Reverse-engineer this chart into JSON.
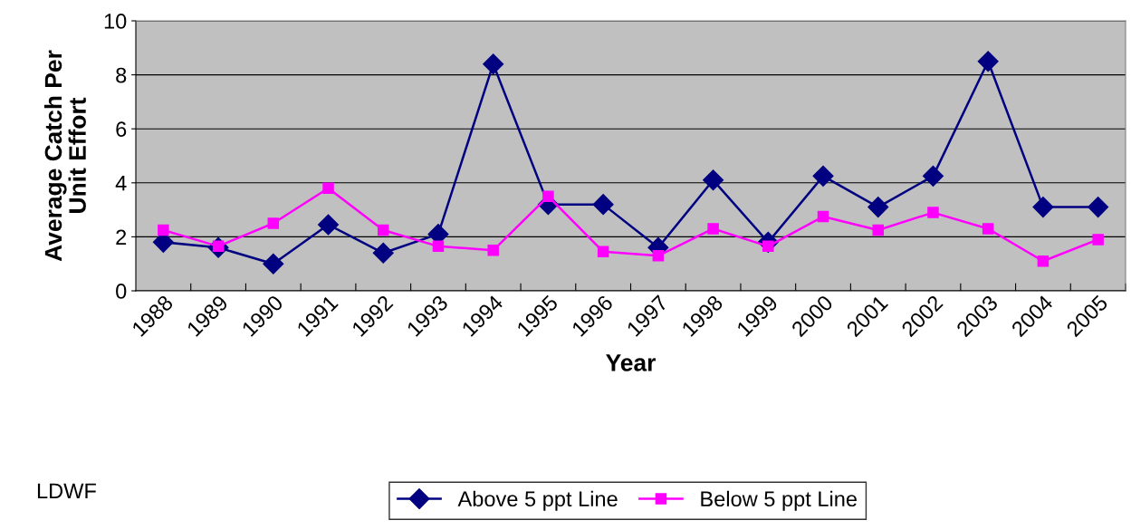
{
  "chart_data": {
    "type": "line",
    "xlabel": "Year",
    "ylabel": "Average Catch Per\nUnit Effort",
    "categories": [
      "1988",
      "1989",
      "1990",
      "1991",
      "1992",
      "1993",
      "1994",
      "1995",
      "1996",
      "1997",
      "1998",
      "1999",
      "2000",
      "2001",
      "2002",
      "2003",
      "2004",
      "2005"
    ],
    "series": [
      {
        "name": "Above 5 ppt Line",
        "color": "#000080",
        "marker": "diamond",
        "values": [
          1.8,
          1.6,
          1.0,
          2.45,
          1.4,
          2.1,
          8.4,
          3.2,
          3.2,
          1.6,
          4.1,
          1.8,
          4.25,
          3.1,
          4.25,
          8.5,
          3.1,
          3.1
        ]
      },
      {
        "name": "Below 5 ppt Line",
        "color": "#ff00ff",
        "marker": "square",
        "values": [
          2.25,
          1.65,
          2.5,
          3.8,
          2.25,
          1.65,
          1.5,
          3.5,
          1.45,
          1.3,
          2.3,
          1.65,
          2.75,
          2.25,
          2.9,
          2.3,
          1.1,
          1.9
        ]
      }
    ],
    "ylim": [
      0,
      10
    ],
    "yticks": [
      0,
      2,
      4,
      6,
      8,
      10
    ],
    "grid": "y",
    "legend": "bottom",
    "line_style": "solid",
    "annotations": [
      "LDWF"
    ]
  }
}
